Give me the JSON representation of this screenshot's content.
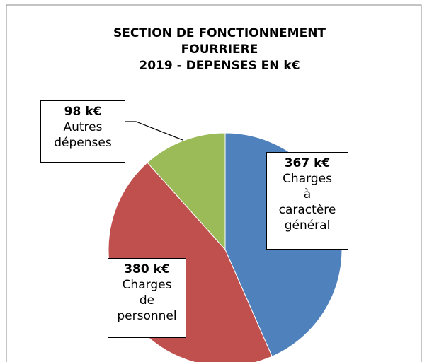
{
  "chart_data": {
    "type": "pie",
    "title": [
      "SECTION DE FONCTIONNEMENT",
      "FOURRIERE",
      "2019 - DEPENSES EN k€"
    ],
    "categories": [
      "Charges à caractère général",
      "Charges de personnel",
      "Autres dépenses"
    ],
    "values": [
      367,
      380,
      98
    ],
    "value_labels": [
      "367 k€",
      "380 k€",
      "98 k€"
    ],
    "colors": [
      "#4f81bd",
      "#c0504d",
      "#9bbb59"
    ]
  }
}
